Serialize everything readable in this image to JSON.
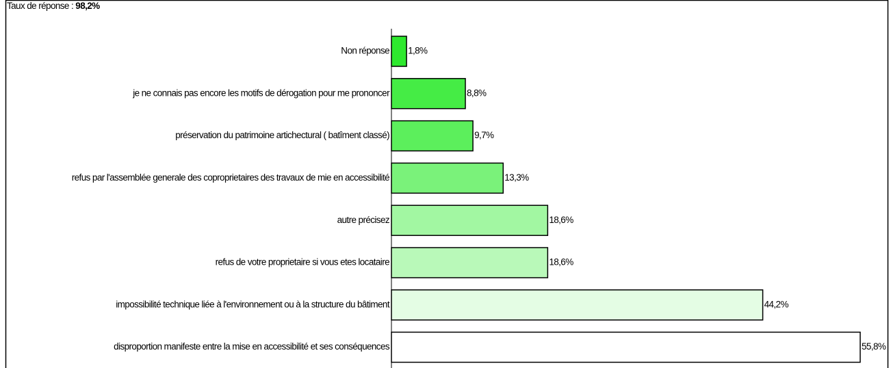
{
  "chart_data": {
    "type": "barh",
    "title": "Taux de réponse :",
    "response_rate": "98,2%",
    "categories": [
      "Non réponse",
      "je ne connais pas encore les motifs de dérogation pour me prononcer",
      "préservation du patrimoine artichectural ( batîment classé)",
      "refus par l'assemblée generale des coproprietaires des travaux de mie en accessibilité",
      "autre précisez",
      "refus de votre proprietaire si vous etes locataire",
      "impossibilité technique liée à l'environnement ou à la structure du bâtiment",
      "disproportion manifeste entre la mise en accessibilité et ses conséquences"
    ],
    "values": [
      1.8,
      8.8,
      9.7,
      13.3,
      18.6,
      18.6,
      44.2,
      55.8
    ],
    "value_labels": [
      "1,8%",
      "8,8%",
      "9,7%",
      "13,3%",
      "18,6%",
      "18,6%",
      "44,2%",
      "55,8%"
    ],
    "colors": [
      "#2ee82e",
      "#45ec45",
      "#5cef5c",
      "#7af27a",
      "#a2f7a2",
      "#b9f9b9",
      "#e4fde4",
      "#ffffff"
    ]
  }
}
